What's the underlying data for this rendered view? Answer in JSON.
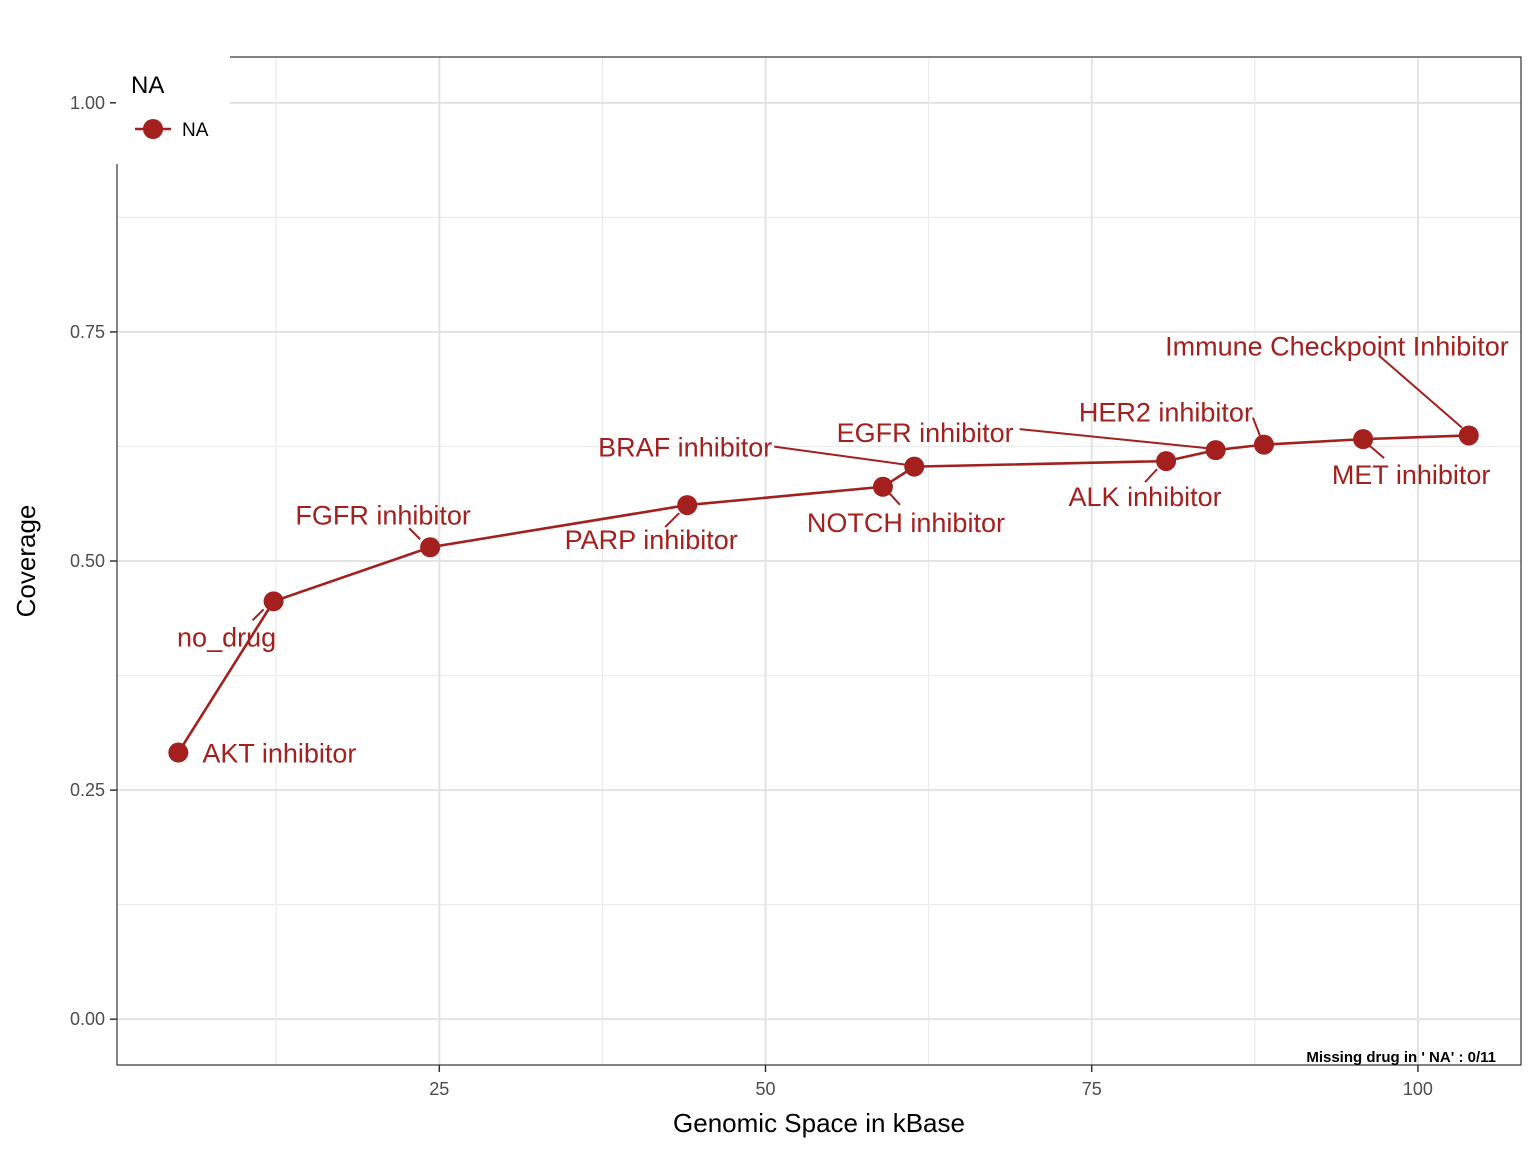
{
  "chart_data": {
    "type": "line",
    "xlabel": "Genomic Space in kBase",
    "ylabel": "Coverage",
    "xlim": [
      0.3,
      107.9
    ],
    "ylim": [
      -0.05,
      1.05
    ],
    "x_ticks": [
      25,
      50,
      75,
      100
    ],
    "x_tick_labels": [
      "25",
      "50",
      "75",
      "100"
    ],
    "y_ticks": [
      0,
      0.25,
      0.5,
      0.75,
      1.0
    ],
    "y_tick_labels": [
      "0.00",
      "0.25",
      "0.50",
      "0.75",
      "1.00"
    ],
    "grid": true,
    "legend_position": "top-left",
    "legend": {
      "title": "NA",
      "items": [
        "NA"
      ]
    },
    "annotation": "Missing drug in ' NA' : 0/11",
    "series": [
      {
        "name": "NA",
        "color": "#a3201e",
        "points": [
          {
            "x": 5.0,
            "y": 0.291,
            "label": "AKT inhibitor"
          },
          {
            "x": 12.3,
            "y": 0.456,
            "label": "no_drug"
          },
          {
            "x": 24.3,
            "y": 0.515,
            "label": "FGFR inhibitor"
          },
          {
            "x": 44.0,
            "y": 0.561,
            "label": "PARP inhibitor"
          },
          {
            "x": 59.0,
            "y": 0.581,
            "label": "NOTCH inhibitor"
          },
          {
            "x": 61.4,
            "y": 0.603,
            "label": "BRAF inhibitor"
          },
          {
            "x": 80.7,
            "y": 0.609,
            "label": "ALK inhibitor"
          },
          {
            "x": 84.5,
            "y": 0.621,
            "label": "EGFR inhibitor"
          },
          {
            "x": 88.2,
            "y": 0.627,
            "label": "HER2 inhibitor"
          },
          {
            "x": 95.8,
            "y": 0.633,
            "label": "MET inhibitor"
          },
          {
            "x": 103.9,
            "y": 0.637,
            "label": "Immune Checkpoint Inhibitor"
          }
        ]
      }
    ]
  }
}
